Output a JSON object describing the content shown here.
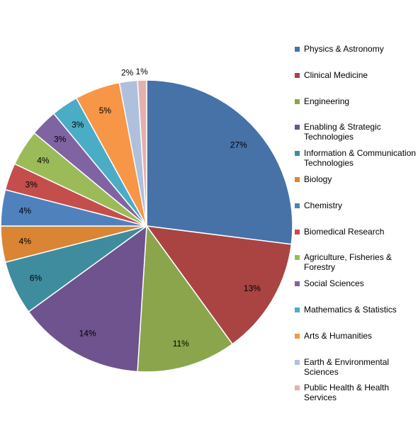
{
  "chart_data": {
    "type": "pie",
    "title": "",
    "start_angle_deg": 0,
    "direction": "clockwise",
    "legend_position": "right",
    "slices": [
      {
        "label": "Physics & Astronomy",
        "value": 27,
        "value_label": "27%",
        "color": "#4672A8"
      },
      {
        "label": "Clinical Medicine",
        "value": 13,
        "value_label": "13%",
        "color": "#A94442"
      },
      {
        "label": "Engineering",
        "value": 11,
        "value_label": "11%",
        "color": "#8AA54C"
      },
      {
        "label": "Enabling & Strategic Technologies",
        "value": 14,
        "value_label": "14%",
        "color": "#6E538E"
      },
      {
        "label": "Information & Communication Technologies",
        "value": 6,
        "value_label": "6%",
        "color": "#3F8C9F"
      },
      {
        "label": "Biology",
        "value": 4,
        "value_label": "4%",
        "color": "#D98534"
      },
      {
        "label": "Chemistry",
        "value": 4,
        "value_label": "4%",
        "color": "#4F81BD"
      },
      {
        "label": "Biomedical Research",
        "value": 3,
        "value_label": "3%",
        "color": "#C44E4C"
      },
      {
        "label": "Agriculture, Fisheries & Forestry",
        "value": 4,
        "value_label": "4%",
        "color": "#9BBB59"
      },
      {
        "label": "Social Sciences",
        "value": 3,
        "value_label": "3%",
        "color": "#8064A2"
      },
      {
        "label": "Mathematics & Statistics",
        "value": 3,
        "value_label": "3%",
        "color": "#4BACC6"
      },
      {
        "label": "Arts & Humanities",
        "value": 5,
        "value_label": "5%",
        "color": "#F79646"
      },
      {
        "label": "Earth & Environmental Sciences",
        "value": 2,
        "value_label": "2%",
        "color": "#AFC0DC"
      },
      {
        "label": "Public Health & Health Services",
        "value": 1,
        "value_label": "1%",
        "color": "#E4B0AE"
      }
    ]
  }
}
